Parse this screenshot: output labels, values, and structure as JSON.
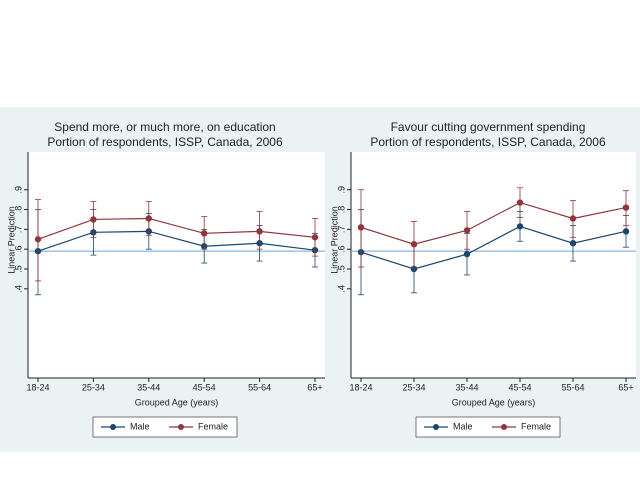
{
  "chart_data": [
    {
      "type": "line",
      "title": "Spend more, or much more, on education",
      "subtitle": "Portion of respondents, ISSP, Canada, 2006",
      "xlabel": "Grouped Age (years)",
      "ylabel": "Linear Prediction",
      "categories": [
        "18-24",
        "25-34",
        "35-44",
        "45-54",
        "55-64",
        "65+"
      ],
      "ylim": [
        -0.05,
        1.05
      ],
      "yticks": [
        {
          "value": 0.4,
          "label": ".4"
        },
        {
          "value": 0.5,
          "label": ".5"
        },
        {
          "value": 0.6,
          "label": ".6"
        },
        {
          "value": 0.7,
          "label": ".7"
        },
        {
          "value": 0.8,
          "label": ".8"
        },
        {
          "value": 0.9,
          "label": ".9"
        }
      ],
      "refline": 0.59,
      "refline_color": "#6fa3d8",
      "series": [
        {
          "name": "Male",
          "color": "#1a476f",
          "values": [
            0.59,
            0.685,
            0.69,
            0.615,
            0.63,
            0.595
          ],
          "lower": [
            0.37,
            0.57,
            0.6,
            0.53,
            0.54,
            0.51
          ],
          "upper": [
            0.8,
            0.8,
            0.78,
            0.7,
            0.72,
            0.68
          ]
        },
        {
          "name": "Female",
          "color": "#90353b",
          "values": [
            0.65,
            0.75,
            0.755,
            0.68,
            0.69,
            0.66
          ],
          "lower": [
            0.44,
            0.66,
            0.67,
            0.6,
            0.6,
            0.565
          ],
          "upper": [
            0.85,
            0.84,
            0.84,
            0.765,
            0.79,
            0.755
          ]
        }
      ]
    },
    {
      "type": "line",
      "title": "Favour cutting government spending",
      "subtitle": "Portion of respondents, ISSP, Canada, 2006",
      "xlabel": "Grouped Age (years)",
      "ylabel": "Linear Prediction",
      "categories": [
        "18-24",
        "25-34",
        "35-44",
        "45-54",
        "55-64",
        "65+"
      ],
      "ylim": [
        -0.05,
        1.05
      ],
      "yticks": [
        {
          "value": 0.4,
          "label": ".4"
        },
        {
          "value": 0.5,
          "label": ".5"
        },
        {
          "value": 0.6,
          "label": ".6"
        },
        {
          "value": 0.7,
          "label": ".7"
        },
        {
          "value": 0.8,
          "label": ".8"
        },
        {
          "value": 0.9,
          "label": ".9"
        }
      ],
      "refline": 0.59,
      "refline_color": "#6fa3d8",
      "series": [
        {
          "name": "Male",
          "color": "#1a476f",
          "values": [
            0.585,
            0.5,
            0.575,
            0.715,
            0.63,
            0.69
          ],
          "lower": [
            0.37,
            0.38,
            0.47,
            0.64,
            0.54,
            0.61
          ],
          "upper": [
            0.8,
            0.62,
            0.68,
            0.79,
            0.72,
            0.77
          ]
        },
        {
          "name": "Female",
          "color": "#90353b",
          "values": [
            0.71,
            0.625,
            0.695,
            0.835,
            0.755,
            0.81
          ],
          "lower": [
            0.51,
            0.51,
            0.6,
            0.76,
            0.66,
            0.72
          ],
          "upper": [
            0.9,
            0.74,
            0.79,
            0.91,
            0.845,
            0.895
          ]
        }
      ]
    }
  ]
}
